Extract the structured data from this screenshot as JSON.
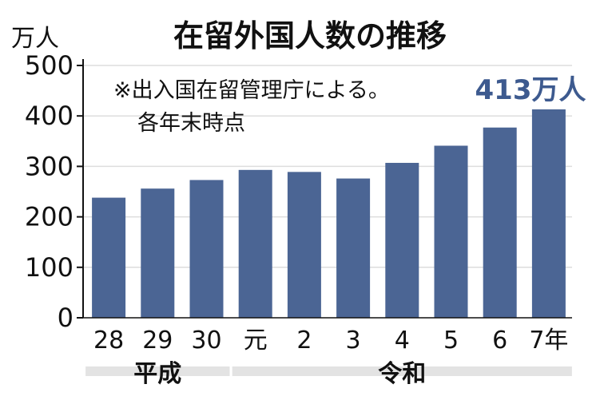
{
  "chart_data": {
    "type": "bar",
    "title": "在留外国人数の推移",
    "ylabel": "万人",
    "ylim": [
      0,
      500
    ],
    "yticks": [
      0,
      100,
      200,
      300,
      400,
      500
    ],
    "grid": true,
    "categories": [
      "28",
      "29",
      "30",
      "元",
      "2",
      "3",
      "4",
      "5",
      "6",
      "7年"
    ],
    "values": [
      238,
      256,
      273,
      293,
      289,
      276,
      307,
      341,
      377,
      413
    ],
    "eras": [
      {
        "label": "平成",
        "from": 0,
        "to": 2
      },
      {
        "label": "令和",
        "from": 3,
        "to": 9
      }
    ],
    "note_lines": [
      "※出入国在留管理庁による。",
      "各年末時点"
    ],
    "highlight_label": "413万人",
    "highlight_index": 9,
    "colors": {
      "bar": "#4b6594",
      "highlight": "#3d5a8f",
      "grid": "#dddddd",
      "era_band": "#e3e3e3",
      "text": "#111111"
    }
  }
}
